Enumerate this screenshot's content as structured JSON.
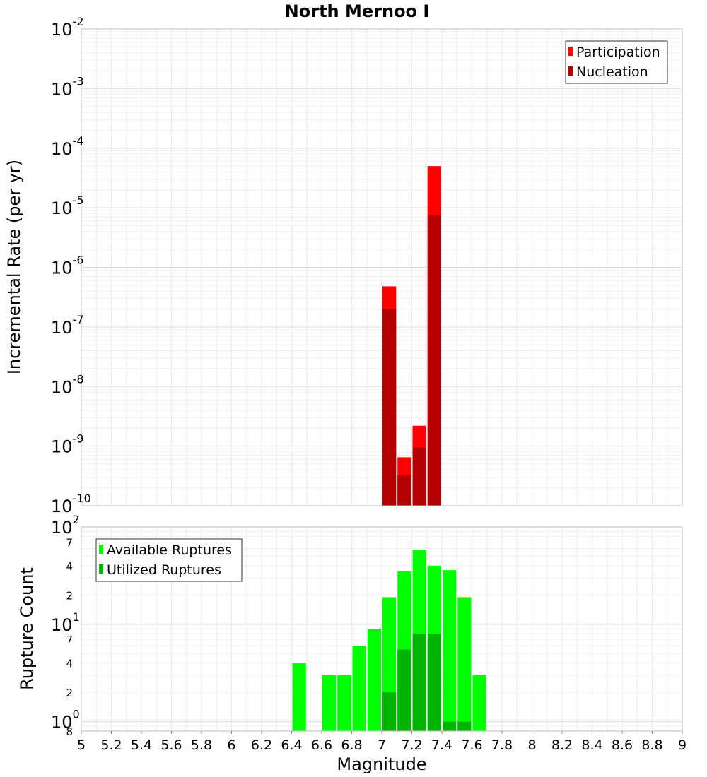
{
  "chart_data": [
    {
      "type": "bar",
      "title": "North Mernoo I",
      "xlabel": "",
      "ylabel": "Incremental Rate (per yr)",
      "yscale": "log",
      "ylim": [
        1e-10,
        0.01
      ],
      "xlim": [
        5,
        9
      ],
      "y_tick_labels": [
        {
          "value": 0.01,
          "base": "10",
          "exp": "-2"
        },
        {
          "value": 0.001,
          "base": "10",
          "exp": "-3"
        },
        {
          "value": 0.0001,
          "base": "10",
          "exp": "-4"
        },
        {
          "value": 1e-05,
          "base": "10",
          "exp": "-5"
        },
        {
          "value": 1e-06,
          "base": "10",
          "exp": "-6"
        },
        {
          "value": 1e-07,
          "base": "10",
          "exp": "-7"
        },
        {
          "value": 1e-08,
          "base": "10",
          "exp": "-8"
        },
        {
          "value": 1e-09,
          "base": "10",
          "exp": "-9"
        },
        {
          "value": 1e-10,
          "base": "10",
          "exp": "-10"
        }
      ],
      "legend": {
        "position": "top-right",
        "entries": [
          {
            "label": "Participation",
            "color": "#ff0000"
          },
          {
            "label": "Nucleation",
            "color": "#b30000"
          }
        ]
      },
      "series": [
        {
          "name": "Participation",
          "color": "#ff0000",
          "x": [
            7.05,
            7.15,
            7.25,
            7.35
          ],
          "values": [
            4.8e-07,
            6.5e-10,
            2.2e-09,
            5e-05
          ]
        },
        {
          "name": "Nucleation",
          "color": "#b30000",
          "x": [
            7.05,
            7.15,
            7.25,
            7.35
          ],
          "values": [
            2e-07,
            3.3e-10,
            9.5e-10,
            7.5e-06
          ]
        }
      ]
    },
    {
      "type": "bar",
      "title": "",
      "xlabel": "Magnitude",
      "ylabel": "Rupture Count",
      "yscale": "log",
      "ylim": [
        0.8,
        100
      ],
      "xlim": [
        5,
        9
      ],
      "x_ticks": [
        "5",
        "5.2",
        "5.4",
        "5.6",
        "5.8",
        "6",
        "6.2",
        "6.4",
        "6.6",
        "6.8",
        "7",
        "7.2",
        "7.4",
        "7.6",
        "7.8",
        "8",
        "8.2",
        "8.4",
        "8.6",
        "8.8",
        "9"
      ],
      "y_tick_labels": [
        {
          "value": 100,
          "base": "10",
          "exp": "2"
        },
        {
          "value": 10,
          "base": "10",
          "exp": "1"
        },
        {
          "value": 1,
          "base": "10",
          "exp": "0"
        }
      ],
      "y_minor_labels": [
        {
          "value": 70,
          "label": "7"
        },
        {
          "value": 40,
          "label": "4"
        },
        {
          "value": 20,
          "label": "2"
        },
        {
          "value": 7,
          "label": "7"
        },
        {
          "value": 4,
          "label": "4"
        },
        {
          "value": 2,
          "label": "2"
        },
        {
          "value": 0.8,
          "label": "8"
        }
      ],
      "legend": {
        "position": "top-left",
        "entries": [
          {
            "label": "Available Ruptures",
            "color": "#00ff00"
          },
          {
            "label": "Utilized Ruptures",
            "color": "#00b300"
          }
        ]
      },
      "series": [
        {
          "name": "Available Ruptures",
          "color": "#00ff00",
          "x": [
            6.45,
            6.65,
            6.75,
            6.85,
            6.95,
            7.05,
            7.15,
            7.25,
            7.35,
            7.45,
            7.55,
            7.65
          ],
          "values": [
            4,
            3,
            3,
            6,
            9,
            19,
            35,
            58,
            40,
            36,
            19,
            3
          ]
        },
        {
          "name": "Utilized Ruptures",
          "color": "#00b300",
          "x": [
            7.05,
            7.15,
            7.25,
            7.35,
            7.45,
            7.55
          ],
          "values": [
            2,
            5.5,
            8,
            8,
            1,
            1
          ]
        }
      ]
    }
  ]
}
